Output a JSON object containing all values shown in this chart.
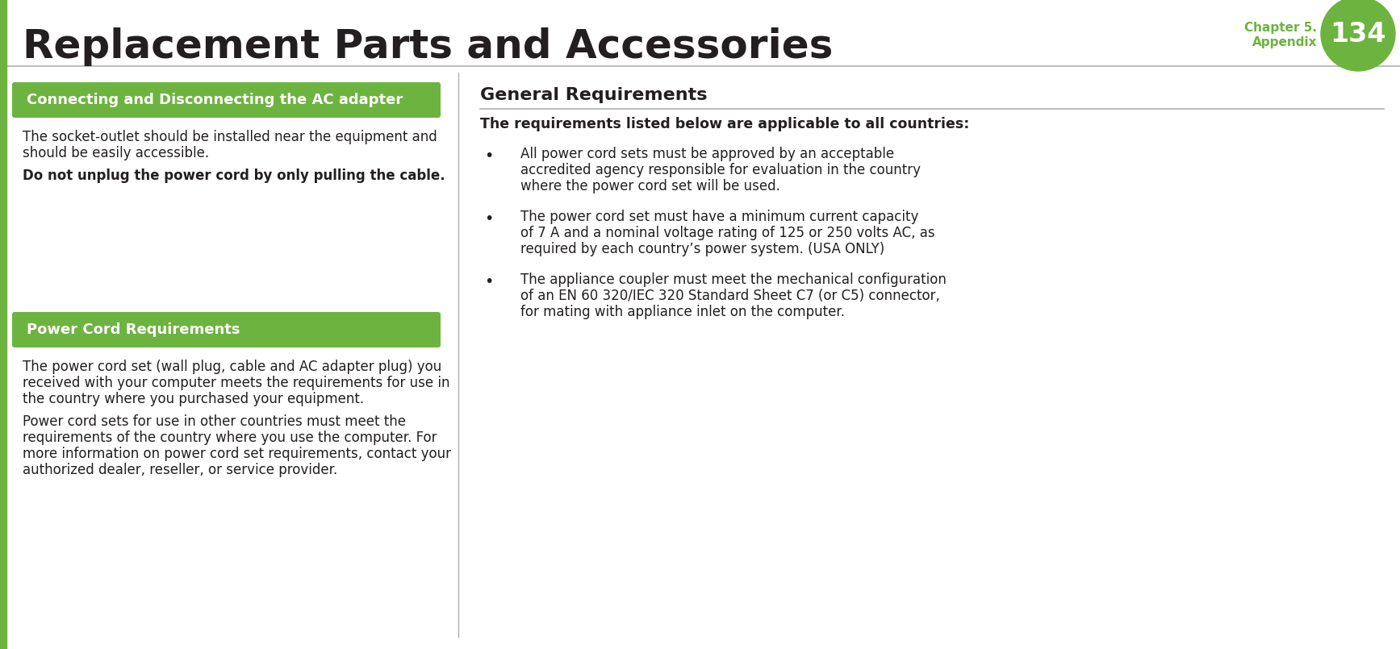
{
  "bg_color": "#ffffff",
  "green_color": "#6db33f",
  "text_color": "#231f20",
  "divider_color": "#b0b0b0",
  "white": "#ffffff",
  "chapter_green": "#6db33f",
  "title_text": "Replacement Parts and Accessories",
  "page_number": "134",
  "chapter_line1": "Chapter 5.",
  "chapter_line2": "Appendix",
  "section1_title": "Connecting and Disconnecting the AC adapter",
  "section1_para1_lines": [
    "The socket-outlet should be installed near the equipment and",
    "should be easily accessible."
  ],
  "section1_bold": "Do not unplug the power cord by only pulling the cable.",
  "section2_title": "Power Cord Requirements",
  "section2_para1_lines": [
    "The power cord set (wall plug, cable and AC adapter plug) you",
    "received with your computer meets the requirements for use in",
    "the country where you purchased your equipment."
  ],
  "section2_para2_lines": [
    "Power cord sets for use in other countries must meet the",
    "requirements of the country where you use the computer. For",
    "more information on power cord set requirements, contact your",
    "authorized dealer, reseller, or service provider."
  ],
  "right_section_title": "General Requirements",
  "right_subtitle": "The requirements listed below are applicable to all countries:",
  "bullet1_lines": [
    "All power cord sets must be approved by an acceptable",
    "accredited agency responsible for evaluation in the country",
    "where the power cord set will be used."
  ],
  "bullet2_lines": [
    "The power cord set must have a minimum current capacity",
    "of 7 A and a nominal voltage rating of 125 or 250 volts AC, as",
    "required by each country’s power system. (USA ONLY)"
  ],
  "bullet3_lines": [
    "The appliance coupler must meet the mechanical configuration",
    "of an EN 60 320/IEC 320 Standard Sheet C7 (or C5) connector,",
    "for mating with appliance inlet on the computer."
  ]
}
